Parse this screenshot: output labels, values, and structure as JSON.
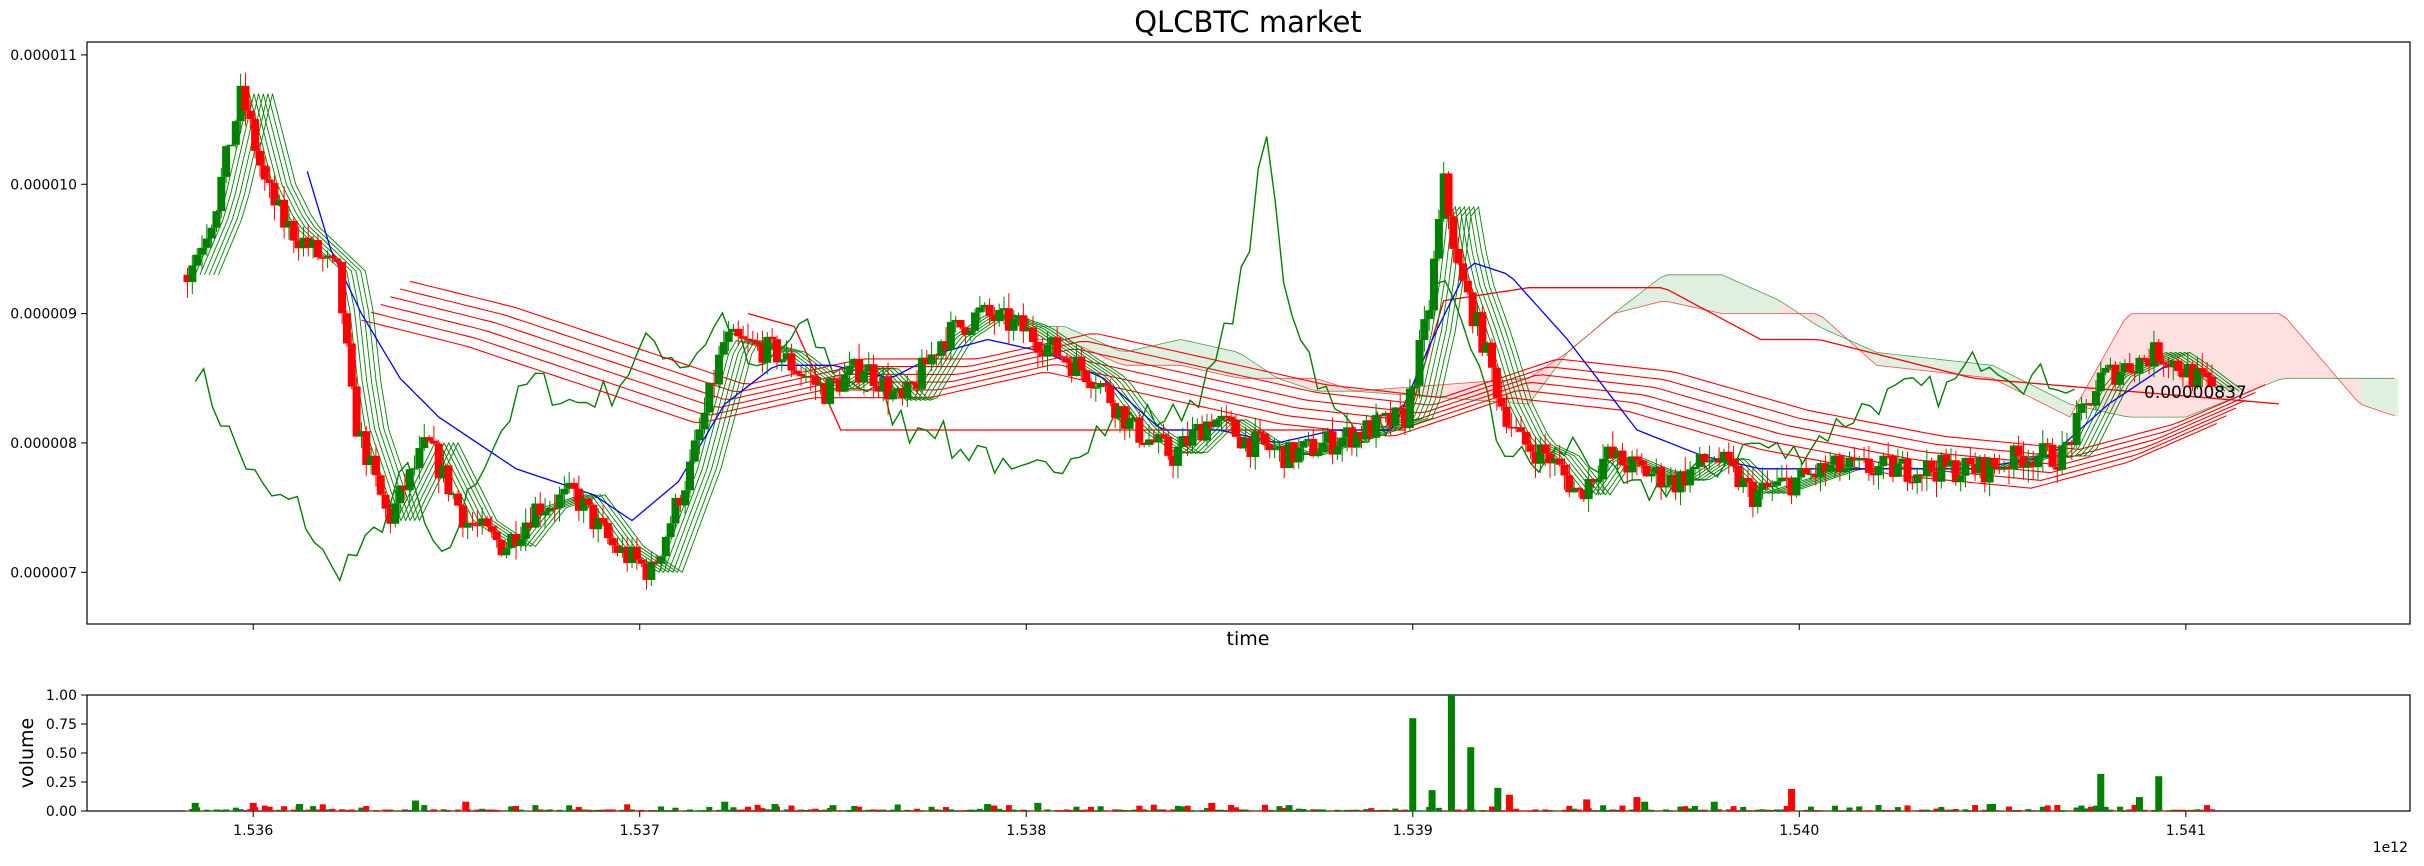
{
  "chart_data": [
    {
      "type": "candlestick",
      "title": "QLCBTC market",
      "xlabel": "time",
      "ylabel": "",
      "xlim": [
        1.53557,
        1.54158
      ],
      "ylim": [
        6.6e-06,
        1.11e-05
      ],
      "x_ticks": [
        1.536,
        1.537,
        1.538,
        1.539,
        1.54,
        1.541
      ],
      "y_ticks": [
        7e-06,
        8e-06,
        9e-06,
        1e-05,
        1.1e-05
      ],
      "y_tick_labels": [
        "0.000007",
        "0.000008",
        "0.000009",
        "0.000010",
        "0.000011"
      ],
      "x_offset_label": "1e12",
      "last_price_label": "0.00000837",
      "colors": {
        "up": "#008000",
        "down": "#ff0000",
        "ma_fast": "#0000ff",
        "cloud_bull": "#008000",
        "cloud_bear": "#ff0000",
        "ribbon_green": "#008000",
        "ribbon_red": "#ff0000"
      },
      "price_anchors": [
        [
          1.53583,
          9.3e-06
        ],
        [
          1.5359,
          9.8e-06
        ],
        [
          1.53597,
          1.07e-05
        ],
        [
          1.53603,
          1e-05
        ],
        [
          1.53608,
          9.7e-06
        ],
        [
          1.53615,
          9.5e-06
        ],
        [
          1.53622,
          9.3e-06
        ],
        [
          1.53626,
          8.2e-06
        ],
        [
          1.53635,
          7.4e-06
        ],
        [
          1.53645,
          8e-06
        ],
        [
          1.53655,
          7.4e-06
        ],
        [
          1.53665,
          7.2e-06
        ],
        [
          1.53673,
          7.5e-06
        ],
        [
          1.53683,
          7.6e-06
        ],
        [
          1.53693,
          7.2e-06
        ],
        [
          1.53703,
          7e-06
        ],
        [
          1.53713,
          7.8e-06
        ],
        [
          1.53722,
          8.8e-06
        ],
        [
          1.53735,
          8.7e-06
        ],
        [
          1.53748,
          8.4e-06
        ],
        [
          1.53758,
          8.6e-06
        ],
        [
          1.53768,
          8.3e-06
        ],
        [
          1.53778,
          8.8e-06
        ],
        [
          1.53788,
          9e-06
        ],
        [
          1.53798,
          8.9e-06
        ],
        [
          1.53808,
          8.7e-06
        ],
        [
          1.53818,
          8.5e-06
        ],
        [
          1.53828,
          8.1e-06
        ],
        [
          1.53838,
          7.9e-06
        ],
        [
          1.53848,
          8.2e-06
        ],
        [
          1.53858,
          8e-06
        ],
        [
          1.53868,
          7.9e-06
        ],
        [
          1.53878,
          8e-06
        ],
        [
          1.53888,
          8.1e-06
        ],
        [
          1.53898,
          8.2e-06
        ],
        [
          1.53904,
          9e-06
        ],
        [
          1.53908,
          1e-05
        ],
        [
          1.53912,
          9.3e-06
        ],
        [
          1.53918,
          8.8e-06
        ],
        [
          1.53923,
          8.3e-06
        ],
        [
          1.53928,
          8e-06
        ],
        [
          1.53935,
          7.9e-06
        ],
        [
          1.53943,
          7.6e-06
        ],
        [
          1.5395,
          7.9e-06
        ],
        [
          1.53958,
          7.8e-06
        ],
        [
          1.53968,
          7.7e-06
        ],
        [
          1.53978,
          7.9e-06
        ],
        [
          1.53988,
          7.6e-06
        ],
        [
          1.53998,
          7.7e-06
        ],
        [
          1.54008,
          7.8e-06
        ],
        [
          1.54018,
          7.8e-06
        ],
        [
          1.54028,
          7.8e-06
        ],
        [
          1.54038,
          7.8e-06
        ],
        [
          1.54048,
          7.8e-06
        ],
        [
          1.54058,
          7.9e-06
        ],
        [
          1.54068,
          7.9e-06
        ],
        [
          1.54073,
          8.2e-06
        ],
        [
          1.54078,
          8.5e-06
        ],
        [
          1.54085,
          8.6e-06
        ],
        [
          1.54093,
          8.7e-06
        ],
        [
          1.54098,
          8.6e-06
        ],
        [
          1.54107,
          8.4e-06
        ]
      ],
      "ma_fast_anchors": [
        [
          1.53614,
          1.01e-05
        ],
        [
          1.5362,
          9.5e-06
        ],
        [
          1.53628,
          9e-06
        ],
        [
          1.53638,
          8.5e-06
        ],
        [
          1.53648,
          8.2e-06
        ],
        [
          1.53658,
          8e-06
        ],
        [
          1.53668,
          7.8e-06
        ],
        [
          1.53678,
          7.7e-06
        ],
        [
          1.53688,
          7.6e-06
        ],
        [
          1.53698,
          7.4e-06
        ],
        [
          1.5371,
          7.7e-06
        ],
        [
          1.53722,
          8.3e-06
        ],
        [
          1.53735,
          8.6e-06
        ],
        [
          1.5375,
          8.6e-06
        ],
        [
          1.53765,
          8.5e-06
        ],
        [
          1.53778,
          8.7e-06
        ],
        [
          1.5379,
          8.8e-06
        ],
        [
          1.53805,
          8.7e-06
        ],
        [
          1.5382,
          8.5e-06
        ],
        [
          1.53835,
          8.1e-06
        ],
        [
          1.5385,
          8.1e-06
        ],
        [
          1.53865,
          8e-06
        ],
        [
          1.5388,
          8.1e-06
        ],
        [
          1.53895,
          8.1e-06
        ],
        [
          1.53905,
          8.8e-06
        ],
        [
          1.53915,
          9.4e-06
        ],
        [
          1.53925,
          9.3e-06
        ],
        [
          1.5394,
          8.8e-06
        ],
        [
          1.53958,
          8.1e-06
        ],
        [
          1.53975,
          7.9e-06
        ],
        [
          1.5399,
          7.8e-06
        ],
        [
          1.54008,
          7.8e-06
        ],
        [
          1.54025,
          7.8e-06
        ],
        [
          1.54045,
          7.8e-06
        ],
        [
          1.54065,
          7.9e-06
        ],
        [
          1.5408,
          8.3e-06
        ],
        [
          1.54095,
          8.6e-06
        ],
        [
          1.54108,
          8.5e-06
        ]
      ],
      "ribbon_anchors": [
        [
          1.53628,
          9.1e-06
        ],
        [
          1.53655,
          8.9e-06
        ],
        [
          1.53685,
          8.6e-06
        ],
        [
          1.53715,
          8.3e-06
        ],
        [
          1.53745,
          8.5e-06
        ],
        [
          1.53775,
          8.5e-06
        ],
        [
          1.53805,
          8.7e-06
        ],
        [
          1.53835,
          8.5e-06
        ],
        [
          1.53865,
          8.3e-06
        ],
        [
          1.53895,
          8.2e-06
        ],
        [
          1.53925,
          8.5e-06
        ],
        [
          1.53955,
          8.4e-06
        ],
        [
          1.5399,
          8.1e-06
        ],
        [
          1.54025,
          7.9e-06
        ],
        [
          1.5406,
          7.8e-06
        ],
        [
          1.54085,
          8e-06
        ],
        [
          1.54108,
          8.3e-06
        ]
      ],
      "lagging_anchors": [
        [
          1.53585,
          8.6e-06
        ],
        [
          1.53595,
          8e-06
        ],
        [
          1.53603,
          7.6e-06
        ],
        [
          1.53612,
          7.5e-06
        ],
        [
          1.5362,
          7e-06
        ],
        [
          1.5363,
          7.2e-06
        ],
        [
          1.5364,
          7.8e-06
        ],
        [
          1.53648,
          7e-06
        ],
        [
          1.5366,
          7.9e-06
        ],
        [
          1.53672,
          8.5e-06
        ],
        [
          1.53683,
          8.3e-06
        ],
        [
          1.53693,
          8.4e-06
        ],
        [
          1.53703,
          8.8e-06
        ],
        [
          1.53712,
          8.6e-06
        ],
        [
          1.53722,
          9e-06
        ],
        [
          1.5373,
          8.5e-06
        ],
        [
          1.53742,
          8.9e-06
        ],
        [
          1.5375,
          8.6e-06
        ],
        [
          1.5376,
          8.4e-06
        ],
        [
          1.5377,
          8.1e-06
        ],
        [
          1.53775,
          8.2e-06
        ],
        [
          1.53782,
          7.9e-06
        ],
        [
          1.53788,
          8e-06
        ],
        [
          1.53796,
          7.7e-06
        ],
        [
          1.53806,
          7.8e-06
        ],
        [
          1.53818,
          8.1e-06
        ],
        [
          1.53828,
          8.2e-06
        ],
        [
          1.53838,
          8.2e-06
        ],
        [
          1.53848,
          8.5e-06
        ],
        [
          1.53857,
          9.4e-06
        ],
        [
          1.53862,
          1.04e-05
        ],
        [
          1.53867,
          9.2e-06
        ],
        [
          1.53873,
          8.7e-06
        ],
        [
          1.5388,
          8.2e-06
        ],
        [
          1.53888,
          8.1e-06
        ],
        [
          1.53898,
          8.2e-06
        ],
        [
          1.53907,
          9.2e-06
        ],
        [
          1.53914,
          8.9e-06
        ],
        [
          1.53922,
          8e-06
        ],
        [
          1.53932,
          7.8e-06
        ],
        [
          1.53942,
          8e-06
        ],
        [
          1.53952,
          7.7e-06
        ],
        [
          1.53958,
          7.6e-06
        ],
        [
          1.53968,
          7.7e-06
        ],
        [
          1.53978,
          7.8e-06
        ],
        [
          1.53988,
          8e-06
        ],
        [
          1.53998,
          7.9e-06
        ],
        [
          1.54008,
          8.1e-06
        ],
        [
          1.54018,
          8.3e-06
        ],
        [
          1.54028,
          8.4e-06
        ],
        [
          1.54038,
          8.4e-06
        ],
        [
          1.54048,
          8.7e-06
        ],
        [
          1.54058,
          8.5e-06
        ],
        [
          1.54068,
          8.5e-06
        ],
        [
          1.54073,
          8.3e-06
        ]
      ],
      "cloud_a_anchors": [
        [
          1.53802,
          8.9e-06
        ],
        [
          1.5381,
          8.9e-06
        ],
        [
          1.53825,
          8.7e-06
        ],
        [
          1.5384,
          8.8e-06
        ],
        [
          1.53855,
          8.7e-06
        ],
        [
          1.53865,
          8.5e-06
        ],
        [
          1.53875,
          8.4e-06
        ],
        [
          1.53885,
          8.4e-06
        ],
        [
          1.5393,
          8.3e-06
        ],
        [
          1.5394,
          8.7e-06
        ],
        [
          1.53952,
          9e-06
        ],
        [
          1.53965,
          9.3e-06
        ],
        [
          1.5398,
          9.3e-06
        ],
        [
          1.53995,
          9.1e-06
        ],
        [
          1.54005,
          8.9e-06
        ],
        [
          1.5402,
          8.7e-06
        ],
        [
          1.5405,
          8.6e-06
        ],
        [
          1.5407,
          8.3e-06
        ],
        [
          1.54085,
          8.2e-06
        ],
        [
          1.541,
          8.2e-06
        ],
        [
          1.54125,
          8.5e-06
        ],
        [
          1.54145,
          8.5e-06
        ],
        [
          1.54155,
          8.5e-06
        ]
      ],
      "cloud_b_anchors": [
        [
          1.53802,
          8.8e-06
        ],
        [
          1.5381,
          8.8e-06
        ],
        [
          1.53825,
          8.6e-06
        ],
        [
          1.5384,
          8.6e-06
        ],
        [
          1.53855,
          8.5e-06
        ],
        [
          1.53865,
          8.5e-06
        ],
        [
          1.53875,
          8.5e-06
        ],
        [
          1.53885,
          8.4e-06
        ],
        [
          1.5393,
          8.5e-06
        ],
        [
          1.5394,
          8.7e-06
        ],
        [
          1.53952,
          9e-06
        ],
        [
          1.53965,
          9.1e-06
        ],
        [
          1.5398,
          9e-06
        ],
        [
          1.53995,
          9e-06
        ],
        [
          1.54005,
          9e-06
        ],
        [
          1.5402,
          8.6e-06
        ],
        [
          1.5405,
          8.5e-06
        ],
        [
          1.5407,
          8.2e-06
        ],
        [
          1.54085,
          9e-06
        ],
        [
          1.541,
          9e-06
        ],
        [
          1.54125,
          9e-06
        ],
        [
          1.54145,
          8.3e-06
        ],
        [
          1.54155,
          8.2e-06
        ]
      ],
      "red_level_anchors": [
        [
          1.53728,
          9e-06
        ],
        [
          1.5374,
          8.9e-06
        ],
        [
          1.53752,
          8.1e-06
        ],
        [
          1.53795,
          8.1e-06
        ],
        [
          1.53822,
          8.1e-06
        ],
        [
          1.53898,
          8.1e-06
        ],
        [
          1.53908,
          9.1e-06
        ],
        [
          1.5393,
          9.2e-06
        ],
        [
          1.53965,
          9.2e-06
        ],
        [
          1.5399,
          8.8e-06
        ],
        [
          1.54005,
          8.8e-06
        ],
        [
          1.54045,
          8.5e-06
        ],
        [
          1.54125,
          8.3e-06
        ]
      ]
    },
    {
      "type": "bar",
      "ylabel": "volume",
      "xlabel": "",
      "xlim": [
        1.53557,
        1.54158
      ],
      "ylim": [
        0,
        1.0
      ],
      "x_ticks": [
        1.536,
        1.537,
        1.538,
        1.539,
        1.54,
        1.541
      ],
      "x_tick_labels": [
        "1.536",
        "1.537",
        "1.538",
        "1.539",
        "1.540",
        "1.541"
      ],
      "y_ticks": [
        0,
        0.25,
        0.5,
        0.75,
        1.0
      ],
      "y_tick_labels": [
        "0.00",
        "0.25",
        "0.50",
        "0.75",
        "1.00"
      ],
      "spikes": [
        [
          1.539,
          0.8,
          "up"
        ],
        [
          1.53905,
          0.18,
          "up"
        ],
        [
          1.5391,
          1.0,
          "up"
        ],
        [
          1.53915,
          0.55,
          "up"
        ],
        [
          1.53922,
          0.2,
          "up"
        ],
        [
          1.53925,
          0.14,
          "down"
        ],
        [
          1.53958,
          0.12,
          "down"
        ],
        [
          1.53978,
          0.08,
          "up"
        ],
        [
          1.53998,
          0.19,
          "down"
        ],
        [
          1.5405,
          0.06,
          "up"
        ],
        [
          1.54078,
          0.32,
          "up"
        ],
        [
          1.54093,
          0.3,
          "up"
        ],
        [
          1.54088,
          0.12,
          "up"
        ],
        [
          1.53585,
          0.07,
          "up"
        ],
        [
          1.536,
          0.07,
          "down"
        ],
        [
          1.53612,
          0.06,
          "up"
        ],
        [
          1.53642,
          0.09,
          "up"
        ],
        [
          1.53655,
          0.08,
          "down"
        ],
        [
          1.53722,
          0.08,
          "up"
        ],
        [
          1.53735,
          0.06,
          "up"
        ],
        [
          1.5375,
          0.05,
          "up"
        ],
        [
          1.5379,
          0.06,
          "up"
        ],
        [
          1.53803,
          0.07,
          "up"
        ],
        [
          1.53848,
          0.07,
          "down"
        ],
        [
          1.53868,
          0.05,
          "up"
        ],
        [
          1.53945,
          0.1,
          "down"
        ],
        [
          1.5396,
          0.08,
          "up"
        ]
      ]
    }
  ]
}
